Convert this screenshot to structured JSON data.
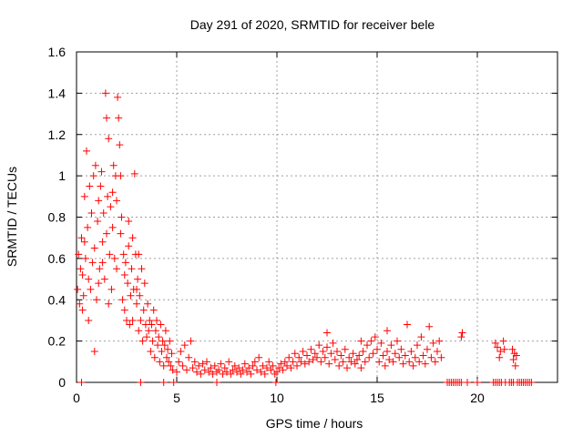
{
  "chart_data": {
    "type": "scatter",
    "title": "Day 291 of 2020, SRMTID for receiver bele",
    "xlabel": "GPS time / hours",
    "ylabel": "SRMTID / TECUs",
    "xlim": [
      0,
      24
    ],
    "ylim": [
      0,
      1.6
    ],
    "xticks": [
      0,
      5,
      10,
      15,
      20
    ],
    "yticks": [
      0,
      0.2,
      0.4,
      0.6,
      0.8,
      1,
      1.2,
      1.4,
      1.6
    ],
    "x_tick_labels": [
      "0",
      "5",
      "10",
      "15",
      "20"
    ],
    "y_tick_labels": [
      "0",
      "0.2",
      "0.4",
      "0.6",
      "0.8",
      "1",
      "1.2",
      "1.4",
      "1.6"
    ],
    "grid": true,
    "marker": "+",
    "marker_color": "#ff0000",
    "grid_color": "#a0a0a0",
    "series": [
      {
        "name": "SRMTID",
        "points": [
          [
            0.05,
            0.45
          ],
          [
            0.1,
            0.62
          ],
          [
            0.15,
            0.38
          ],
          [
            0.2,
            0.55
          ],
          [
            0.25,
            0.7
          ],
          [
            0.3,
            0.52
          ],
          [
            0.35,
            0.42
          ],
          [
            0.4,
            0.9
          ],
          [
            0.45,
            0.6
          ],
          [
            0.5,
            1.12
          ],
          [
            0.55,
            0.75
          ],
          [
            0.6,
            0.5
          ],
          [
            0.65,
            0.95
          ],
          [
            0.7,
            0.45
          ],
          [
            0.75,
            0.82
          ],
          [
            0.8,
            0.58
          ],
          [
            0.85,
            1.0
          ],
          [
            0.9,
            0.65
          ],
          [
            0.95,
            1.05
          ],
          [
            1.0,
            0.4
          ],
          [
            1.05,
            0.78
          ],
          [
            1.1,
            0.88
          ],
          [
            1.15,
            0.55
          ],
          [
            1.2,
            0.95
          ],
          [
            1.25,
            1.02
          ],
          [
            1.3,
            0.68
          ],
          [
            1.35,
            0.82
          ],
          [
            1.4,
            0.5
          ],
          [
            1.45,
            1.4
          ],
          [
            1.5,
            1.28
          ],
          [
            1.55,
            0.9
          ],
          [
            1.6,
            1.18
          ],
          [
            1.65,
            0.62
          ],
          [
            1.7,
            0.85
          ],
          [
            1.75,
            0.45
          ],
          [
            1.8,
            0.75
          ],
          [
            1.85,
            1.05
          ],
          [
            1.9,
            0.6
          ],
          [
            1.95,
            1.0
          ],
          [
            2.0,
            0.55
          ],
          [
            2.05,
            1.38
          ],
          [
            2.1,
            1.28
          ],
          [
            2.15,
            1.15
          ],
          [
            2.2,
            0.72
          ],
          [
            2.25,
            0.8
          ],
          [
            2.3,
            0.4
          ],
          [
            2.35,
            0.62
          ],
          [
            2.4,
            0.35
          ],
          [
            2.45,
            0.58
          ],
          [
            2.5,
            0.3
          ],
          [
            2.55,
            0.48
          ],
          [
            2.6,
            0.66
          ],
          [
            2.65,
            0.28
          ],
          [
            2.7,
            0.42
          ],
          [
            2.75,
            0.55
          ],
          [
            2.8,
            0.3
          ],
          [
            2.85,
            0.45
          ],
          [
            2.9,
            1.01
          ],
          [
            2.95,
            0.62
          ],
          [
            3.0,
            0.38
          ],
          [
            3.05,
            0.5
          ],
          [
            3.1,
            0.25
          ],
          [
            3.15,
            0.42
          ],
          [
            3.2,
            0.3
          ],
          [
            3.25,
            0.55
          ],
          [
            3.3,
            0.2
          ],
          [
            3.35,
            0.35
          ],
          [
            3.4,
            0.48
          ],
          [
            3.45,
            0.28
          ],
          [
            3.5,
            0.22
          ],
          [
            3.55,
            0.38
          ],
          [
            3.6,
            0.25
          ],
          [
            3.65,
            0.3
          ],
          [
            3.7,
            0.15
          ],
          [
            3.75,
            0.28
          ],
          [
            3.8,
            0.2
          ],
          [
            3.85,
            0.35
          ],
          [
            3.9,
            0.12
          ],
          [
            3.95,
            0.25
          ],
          [
            4.0,
            0.3
          ],
          [
            4.05,
            0.18
          ],
          [
            4.1,
            0.22
          ],
          [
            4.15,
            0.1
          ],
          [
            4.2,
            0.28
          ],
          [
            4.25,
            0.15
          ],
          [
            4.3,
            0.2
          ],
          [
            4.35,
            0.08
          ],
          [
            4.4,
            0.18
          ],
          [
            4.45,
            0.25
          ],
          [
            4.5,
            0.12
          ],
          [
            4.55,
            0.16
          ],
          [
            4.6,
            0.1
          ],
          [
            4.65,
            0.2
          ],
          [
            4.7,
            0.08
          ],
          [
            4.75,
            0.14
          ],
          [
            4.8,
            0.06
          ],
          [
            0.9,
            0.15
          ],
          [
            1.5,
            0.72
          ],
          [
            2.2,
            1.0
          ],
          [
            0.3,
            0.35
          ],
          [
            1.1,
            0.48
          ],
          [
            1.8,
            0.92
          ],
          [
            2.6,
            0.78
          ],
          [
            3.1,
            0.62
          ],
          [
            0.6,
            0.3
          ],
          [
            1.3,
            0.58
          ],
          [
            2.0,
            0.88
          ],
          [
            2.8,
            0.7
          ],
          [
            0.4,
            0.68
          ],
          [
            1.6,
            0.38
          ],
          [
            2.4,
            0.52
          ],
          [
            3.0,
            0.45
          ],
          [
            5.0,
            0.05
          ],
          [
            5.1,
            0.1
          ],
          [
            5.2,
            0.15
          ],
          [
            5.3,
            0.08
          ],
          [
            5.4,
            0.18
          ],
          [
            5.5,
            0.06
          ],
          [
            5.6,
            0.12
          ],
          [
            5.7,
            0.2
          ],
          [
            5.8,
            0.07
          ],
          [
            5.9,
            0.1
          ],
          [
            6.0,
            0.05
          ],
          [
            6.1,
            0.08
          ],
          [
            6.2,
            0.04
          ],
          [
            6.3,
            0.09
          ],
          [
            6.4,
            0.06
          ],
          [
            6.5,
            0.1
          ],
          [
            6.6,
            0.05
          ],
          [
            6.7,
            0.07
          ],
          [
            6.8,
            0.04
          ],
          [
            6.9,
            0.08
          ],
          [
            7.0,
            0.05
          ],
          [
            7.1,
            0.06
          ],
          [
            7.2,
            0.09
          ],
          [
            7.3,
            0.04
          ],
          [
            7.4,
            0.07
          ],
          [
            7.5,
            0.05
          ],
          [
            7.6,
            0.1
          ],
          [
            7.7,
            0.04
          ],
          [
            7.8,
            0.06
          ],
          [
            7.9,
            0.08
          ],
          [
            8.0,
            0.05
          ],
          [
            8.1,
            0.07
          ],
          [
            8.2,
            0.04
          ],
          [
            8.3,
            0.06
          ],
          [
            8.4,
            0.09
          ],
          [
            8.5,
            0.05
          ],
          [
            8.6,
            0.07
          ],
          [
            8.7,
            0.04
          ],
          [
            8.8,
            0.08
          ],
          [
            8.9,
            0.1
          ],
          [
            9.0,
            0.06
          ],
          [
            9.1,
            0.12
          ],
          [
            9.2,
            0.05
          ],
          [
            9.3,
            0.08
          ],
          [
            9.4,
            0.04
          ],
          [
            9.5,
            0.07
          ],
          [
            9.6,
            0.1
          ],
          [
            9.7,
            0.06
          ],
          [
            9.8,
            0.08
          ],
          [
            9.9,
            0.04
          ],
          [
            10.0,
            0.05
          ],
          [
            10.1,
            0.07
          ],
          [
            10.2,
            0.09
          ],
          [
            10.3,
            0.06
          ],
          [
            10.4,
            0.1
          ],
          [
            10.5,
            0.08
          ],
          [
            10.6,
            0.12
          ],
          [
            10.7,
            0.07
          ],
          [
            10.8,
            0.1
          ],
          [
            10.9,
            0.14
          ],
          [
            11.0,
            0.08
          ],
          [
            11.1,
            0.12
          ],
          [
            11.2,
            0.1
          ],
          [
            11.3,
            0.15
          ],
          [
            11.4,
            0.09
          ],
          [
            11.5,
            0.13
          ],
          [
            11.6,
            0.1
          ],
          [
            11.7,
            0.16
          ],
          [
            11.8,
            0.11
          ],
          [
            11.9,
            0.14
          ],
          [
            12.0,
            0.12
          ],
          [
            12.1,
            0.18
          ],
          [
            12.2,
            0.1
          ],
          [
            12.3,
            0.15
          ],
          [
            12.4,
            0.12
          ],
          [
            12.5,
            0.17
          ],
          [
            12.6,
            0.09
          ],
          [
            12.7,
            0.14
          ],
          [
            12.8,
            0.19
          ],
          [
            12.9,
            0.11
          ],
          [
            13.0,
            0.15
          ],
          [
            13.1,
            0.08
          ],
          [
            13.2,
            0.13
          ],
          [
            13.3,
            0.1
          ],
          [
            13.4,
            0.16
          ],
          [
            13.5,
            0.07
          ],
          [
            13.6,
            0.12
          ],
          [
            13.7,
            0.1
          ],
          [
            13.8,
            0.14
          ],
          [
            13.9,
            0.09
          ],
          [
            14.0,
            0.11
          ],
          [
            14.1,
            0.13
          ],
          [
            14.2,
            0.07
          ],
          [
            14.3,
            0.15
          ],
          [
            14.4,
            0.1
          ],
          [
            14.5,
            0.18
          ],
          [
            14.6,
            0.12
          ],
          [
            14.7,
            0.2
          ],
          [
            14.8,
            0.14
          ],
          [
            14.9,
            0.22
          ],
          [
            15.0,
            0.16
          ],
          [
            15.1,
            0.1
          ],
          [
            15.2,
            0.19
          ],
          [
            15.3,
            0.13
          ],
          [
            15.4,
            0.08
          ],
          [
            15.5,
            0.15
          ],
          [
            15.6,
            0.11
          ],
          [
            15.7,
            0.18
          ],
          [
            15.8,
            0.1
          ],
          [
            15.9,
            0.14
          ],
          [
            16.0,
            0.2
          ],
          [
            16.1,
            0.12
          ],
          [
            16.2,
            0.16
          ],
          [
            16.3,
            0.09
          ],
          [
            16.4,
            0.13
          ],
          [
            16.5,
            0.28
          ],
          [
            16.6,
            0.1
          ],
          [
            16.7,
            0.15
          ],
          [
            16.8,
            0.08
          ],
          [
            16.9,
            0.12
          ],
          [
            17.0,
            0.18
          ],
          [
            17.1,
            0.1
          ],
          [
            17.2,
            0.22
          ],
          [
            17.3,
            0.13
          ],
          [
            17.4,
            0.09
          ],
          [
            17.5,
            0.16
          ],
          [
            17.6,
            0.27
          ],
          [
            17.7,
            0.12
          ],
          [
            17.8,
            0.19
          ],
          [
            17.9,
            0.1
          ],
          [
            18.0,
            0.15
          ],
          [
            18.1,
            0.2
          ],
          [
            18.2,
            0.12
          ],
          [
            12.5,
            0.24
          ],
          [
            14.2,
            0.2
          ],
          [
            15.5,
            0.25
          ],
          [
            19.2,
            0.22
          ],
          [
            19.25,
            0.24
          ],
          [
            20.9,
            0.19
          ],
          [
            21.0,
            0.17
          ],
          [
            21.1,
            0.12
          ],
          [
            21.15,
            0.15
          ],
          [
            21.3,
            0.2
          ],
          [
            21.35,
            0.16
          ],
          [
            21.75,
            0.16
          ],
          [
            21.8,
            0.11
          ],
          [
            21.85,
            0.14
          ],
          [
            21.9,
            0.08
          ],
          [
            21.95,
            0.13
          ],
          [
            0.25,
            0.0
          ],
          [
            3.2,
            0.0
          ],
          [
            4.35,
            0.0
          ],
          [
            4.85,
            0.0
          ],
          [
            7.0,
            0.0
          ],
          [
            9.95,
            0.0
          ],
          [
            18.5,
            0.0
          ],
          [
            18.6,
            0.0
          ],
          [
            18.7,
            0.0
          ],
          [
            18.8,
            0.0
          ],
          [
            18.9,
            0.0
          ],
          [
            19.0,
            0.0
          ],
          [
            19.1,
            0.0
          ],
          [
            19.2,
            0.0
          ],
          [
            19.5,
            0.0
          ],
          [
            20.0,
            0.0
          ],
          [
            20.8,
            0.0
          ],
          [
            20.9,
            0.0
          ],
          [
            21.0,
            0.0
          ],
          [
            21.1,
            0.0
          ],
          [
            21.2,
            0.0
          ],
          [
            21.4,
            0.0
          ],
          [
            21.6,
            0.0
          ],
          [
            21.7,
            0.0
          ],
          [
            21.8,
            0.0
          ],
          [
            22.0,
            0.0
          ],
          [
            22.1,
            0.0
          ],
          [
            22.2,
            0.0
          ],
          [
            22.3,
            0.0
          ],
          [
            22.4,
            0.0
          ],
          [
            22.5,
            0.0
          ],
          [
            22.6,
            0.0
          ],
          [
            22.7,
            0.0
          ]
        ]
      }
    ]
  }
}
